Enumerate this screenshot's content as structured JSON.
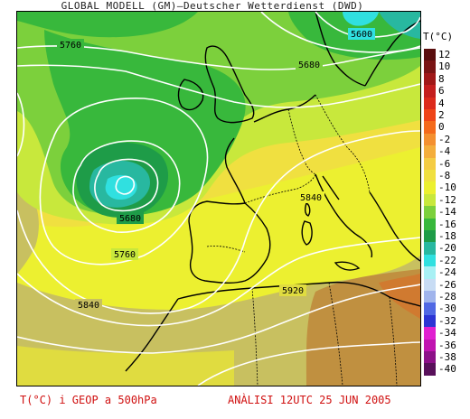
{
  "title": "GLOBAL MODELL (GM)—Deutscher Wetterdienst (DWD)",
  "legend": {
    "unit": "T(°C)",
    "items": [
      {
        "label": "12",
        "color": "#5a0e0e"
      },
      {
        "label": "10",
        "color": "#7a1414"
      },
      {
        "label": "8",
        "color": "#a01818"
      },
      {
        "label": "6",
        "color": "#c41e1e"
      },
      {
        "label": "4",
        "color": "#dc2a1c"
      },
      {
        "label": "2",
        "color": "#ee4418"
      },
      {
        "label": "0",
        "color": "#f46a1c"
      },
      {
        "label": "-2",
        "color": "#f49030"
      },
      {
        "label": "-4",
        "color": "#f4ae3c"
      },
      {
        "label": "-6",
        "color": "#f4cc44"
      },
      {
        "label": "-8",
        "color": "#f0e040"
      },
      {
        "label": "-10",
        "color": "#ecf030"
      },
      {
        "label": "-12",
        "color": "#c8e83c"
      },
      {
        "label": "-14",
        "color": "#7cd03c"
      },
      {
        "label": "-16",
        "color": "#38b83c"
      },
      {
        "label": "-18",
        "color": "#1e9c48"
      },
      {
        "label": "-20",
        "color": "#28b8a0"
      },
      {
        "label": "-22",
        "color": "#30e0e0"
      },
      {
        "label": "-24",
        "color": "#a8f0f4"
      },
      {
        "label": "-26",
        "color": "#c8dcf4"
      },
      {
        "label": "-28",
        "color": "#a0b4ec"
      },
      {
        "label": "-30",
        "color": "#5068e4"
      },
      {
        "label": "-32",
        "color": "#2c34d4"
      },
      {
        "label": "-34",
        "color": "#e020d0"
      },
      {
        "label": "-36",
        "color": "#c014b0"
      },
      {
        "label": "-38",
        "color": "#8c1088"
      },
      {
        "label": "-40",
        "color": "#58105a"
      }
    ]
  },
  "contours": [
    {
      "label": "5760"
    },
    {
      "label": "5600"
    },
    {
      "label": "5680"
    },
    {
      "label": "5680"
    },
    {
      "label": "5760"
    },
    {
      "label": "5840"
    },
    {
      "label": "5840"
    },
    {
      "label": "5920"
    }
  ],
  "footer": {
    "left": "T(°C) i GEOP a 500hPa",
    "right": "ANÀLISI 12UTC 25 JUN 2005"
  }
}
